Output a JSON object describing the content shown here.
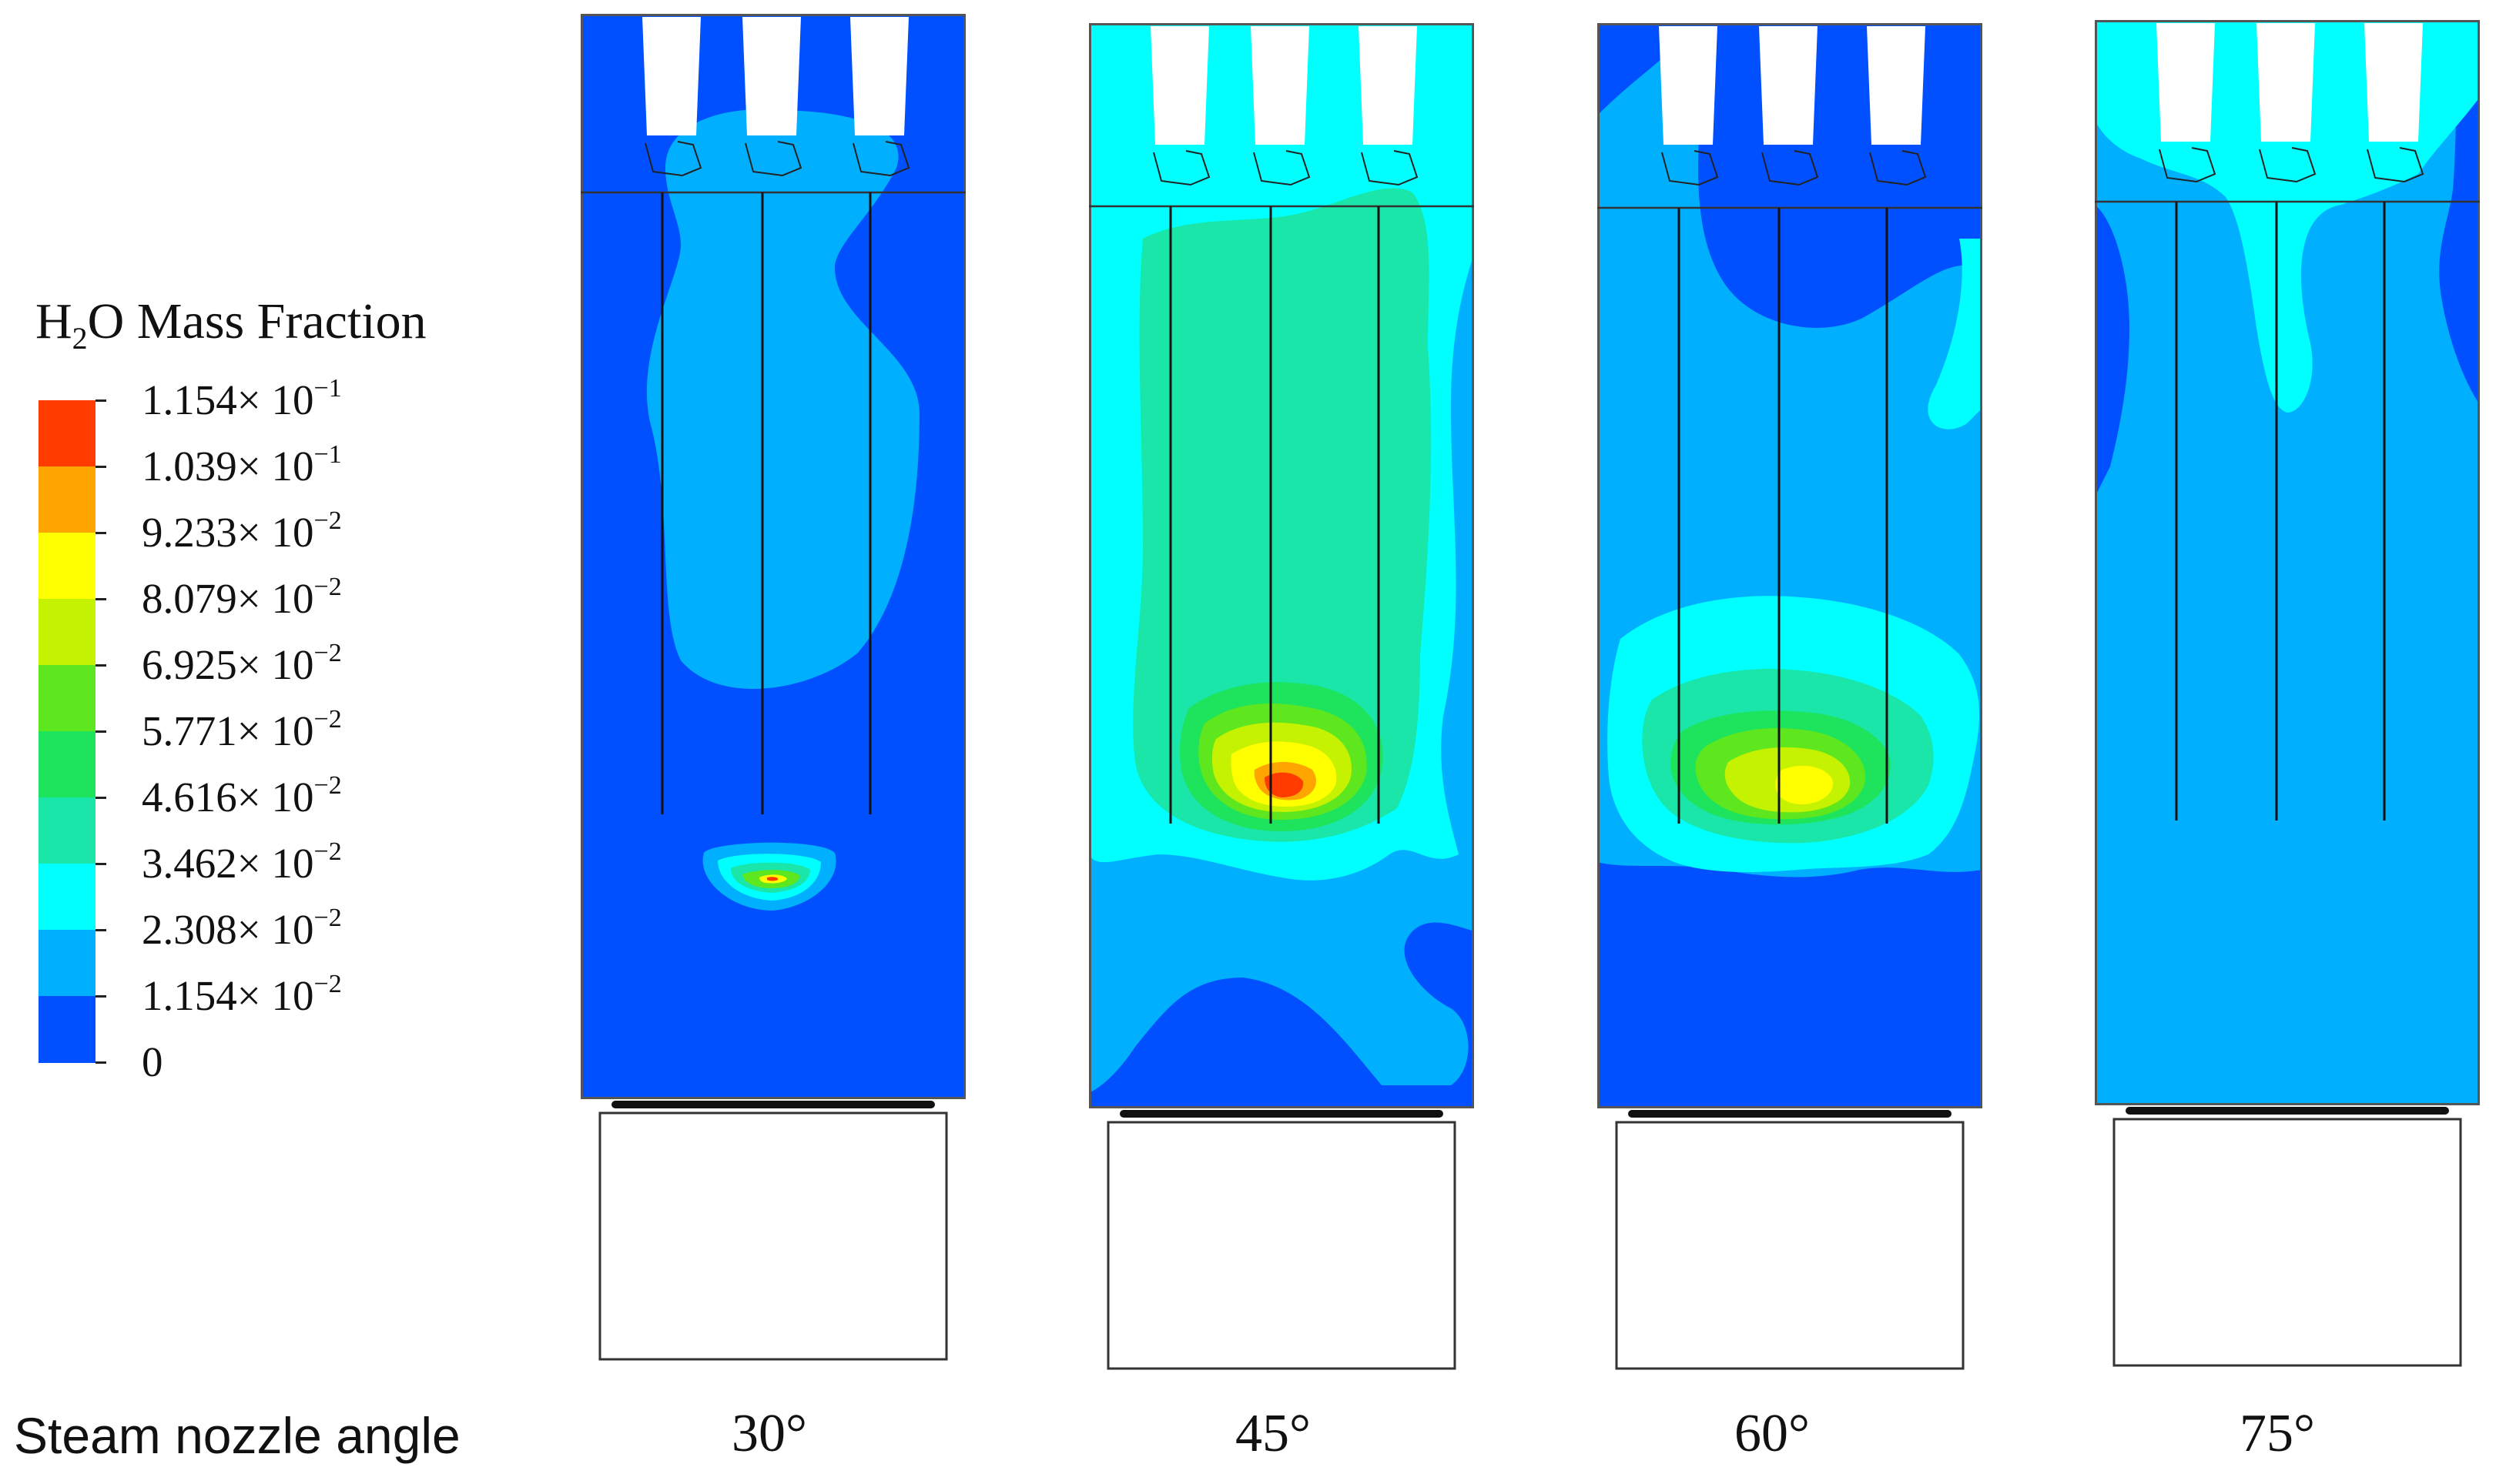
{
  "legend": {
    "title_main": "H",
    "title_sub": "2",
    "title_rest": "O Mass Fraction",
    "labels": [
      {
        "mant": "1.154× 10",
        "exp": "−1"
      },
      {
        "mant": "1.039× 10",
        "exp": "−1"
      },
      {
        "mant": "9.233× 10",
        "exp": "−2"
      },
      {
        "mant": "8.079× 10",
        "exp": "−2"
      },
      {
        "mant": "6.925× 10",
        "exp": "−2"
      },
      {
        "mant": "5.771× 10",
        "exp": "−2"
      },
      {
        "mant": "4.616× 10",
        "exp": "−2"
      },
      {
        "mant": "3.462× 10",
        "exp": "−2"
      },
      {
        "mant": "2.308× 10",
        "exp": "−2"
      },
      {
        "mant": "1.154× 10",
        "exp": "−2"
      },
      {
        "mant": "0",
        "exp": ""
      }
    ],
    "colors_top_to_bottom": [
      "#ff3b00",
      "#ffa500",
      "#ffff00",
      "#c4f200",
      "#5ee61e",
      "#1de45c",
      "#19e6a8",
      "#00ffff",
      "#00b0ff",
      "#0050ff"
    ]
  },
  "axis_label": "Steam nozzle angle",
  "panels": [
    {
      "angle": "30°",
      "background": "#0050ff"
    },
    {
      "angle": "45°",
      "background": "#0050ff"
    },
    {
      "angle": "60°",
      "background": "#0050ff"
    },
    {
      "angle": "75°",
      "background": "#00b0ff"
    }
  ]
}
